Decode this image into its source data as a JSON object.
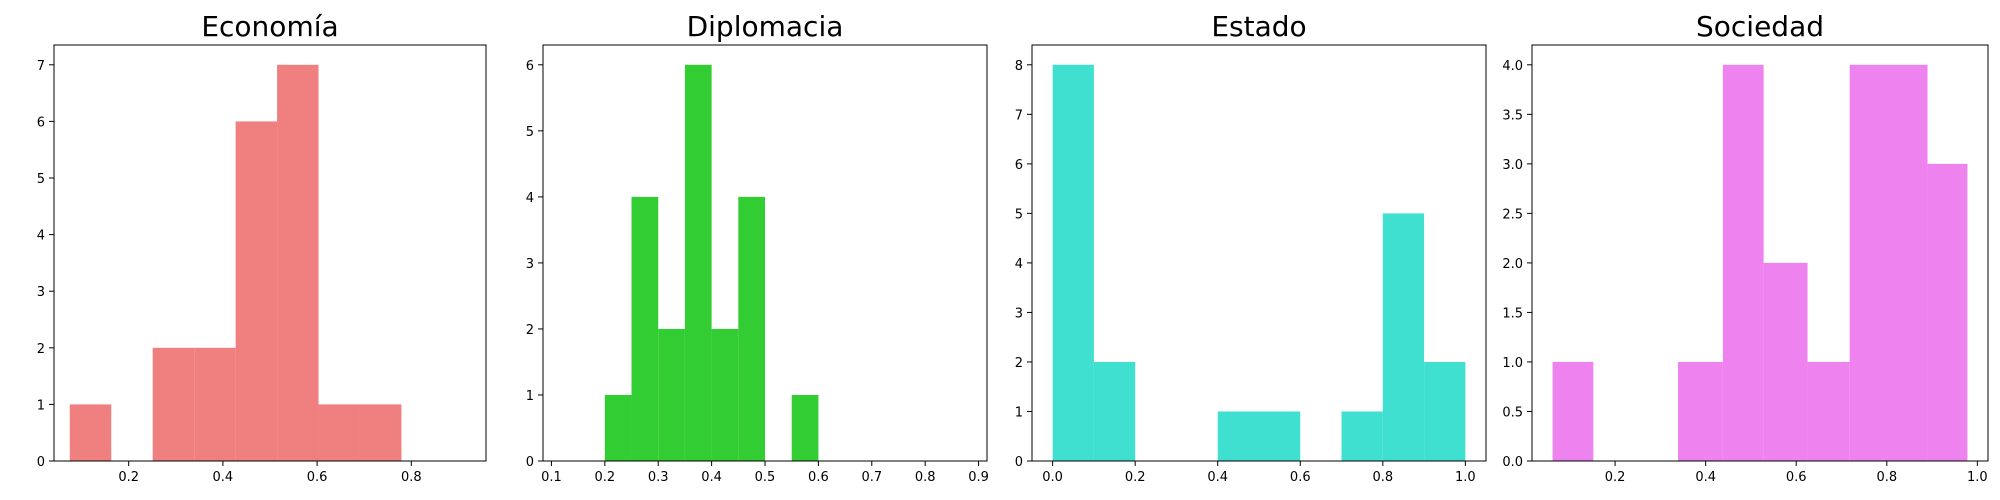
{
  "chart_data": [
    {
      "type": "bar",
      "title": "Economía",
      "color": "#F08080",
      "xlim": [
        0.0415,
        0.9585
      ],
      "ylim": [
        0,
        7.35
      ],
      "xticks": [
        0.2,
        0.4,
        0.6,
        0.8
      ],
      "xtick_labels": [
        "0.2",
        "0.4",
        "0.6",
        "0.8"
      ],
      "yticks": [
        0,
        1,
        2,
        3,
        4,
        5,
        6,
        7
      ],
      "ytick_labels": [
        "0",
        "1",
        "2",
        "3",
        "4",
        "5",
        "6",
        "7"
      ],
      "bins": [
        {
          "x0": 0.075,
          "x1": 0.163,
          "count": 1
        },
        {
          "x0": 0.251,
          "x1": 0.339,
          "count": 2
        },
        {
          "x0": 0.339,
          "x1": 0.427,
          "count": 2
        },
        {
          "x0": 0.427,
          "x1": 0.515,
          "count": 6
        },
        {
          "x0": 0.515,
          "x1": 0.603,
          "count": 7
        },
        {
          "x0": 0.603,
          "x1": 0.691,
          "count": 1
        },
        {
          "x0": 0.691,
          "x1": 0.779,
          "count": 1
        }
      ]
    },
    {
      "type": "bar",
      "title": "Diplomacia",
      "color": "#32CD32",
      "xlim": [
        0.0842,
        0.9158
      ],
      "ylim": [
        0,
        6.3
      ],
      "xticks": [
        0.1,
        0.2,
        0.3,
        0.4,
        0.5,
        0.6,
        0.7,
        0.8,
        0.9
      ],
      "xtick_labels": [
        "0.1",
        "0.2",
        "0.3",
        "0.4",
        "0.5",
        "0.6",
        "0.7",
        "0.8",
        "0.9"
      ],
      "yticks": [
        0,
        1,
        2,
        3,
        4,
        5,
        6
      ],
      "ytick_labels": [
        "0",
        "1",
        "2",
        "3",
        "4",
        "5",
        "6"
      ],
      "bins": [
        {
          "x0": 0.2,
          "x1": 0.25,
          "count": 1
        },
        {
          "x0": 0.25,
          "x1": 0.3,
          "count": 4
        },
        {
          "x0": 0.3,
          "x1": 0.35,
          "count": 2
        },
        {
          "x0": 0.35,
          "x1": 0.4,
          "count": 6
        },
        {
          "x0": 0.4,
          "x1": 0.45,
          "count": 2
        },
        {
          "x0": 0.45,
          "x1": 0.5,
          "count": 4
        },
        {
          "x0": 0.55,
          "x1": 0.6,
          "count": 1
        }
      ]
    },
    {
      "type": "bar",
      "title": "Estado",
      "color": "#40E0D0",
      "xlim": [
        -0.05,
        1.05
      ],
      "ylim": [
        0,
        8.4
      ],
      "xticks": [
        0.0,
        0.2,
        0.4,
        0.6,
        0.8,
        1.0
      ],
      "xtick_labels": [
        "0.0",
        "0.2",
        "0.4",
        "0.6",
        "0.8",
        "1.0"
      ],
      "yticks": [
        0,
        1,
        2,
        3,
        4,
        5,
        6,
        7,
        8
      ],
      "ytick_labels": [
        "0",
        "1",
        "2",
        "3",
        "4",
        "5",
        "6",
        "7",
        "8"
      ],
      "bins": [
        {
          "x0": 0.0,
          "x1": 0.1,
          "count": 8
        },
        {
          "x0": 0.1,
          "x1": 0.2,
          "count": 2
        },
        {
          "x0": 0.4,
          "x1": 0.5,
          "count": 1
        },
        {
          "x0": 0.5,
          "x1": 0.6,
          "count": 1
        },
        {
          "x0": 0.7,
          "x1": 0.8,
          "count": 1
        },
        {
          "x0": 0.8,
          "x1": 0.9,
          "count": 5
        },
        {
          "x0": 0.9,
          "x1": 1.0,
          "count": 2
        }
      ]
    },
    {
      "type": "bar",
      "title": "Sociedad",
      "color": "#EE82EE",
      "xlim": [
        0.0165,
        1.0235
      ],
      "ylim": [
        0,
        4.2
      ],
      "xticks": [
        0.2,
        0.4,
        0.6,
        0.8,
        1.0
      ],
      "xtick_labels": [
        "0.2",
        "0.4",
        "0.6",
        "0.8",
        "1.0"
      ],
      "yticks": [
        0,
        0.5,
        1,
        1.5,
        2,
        2.5,
        3,
        3.5,
        4
      ],
      "ytick_labels": [
        "0.0",
        "0.5",
        "1.0",
        "1.5",
        "2.0",
        "2.5",
        "3.0",
        "3.5",
        "4.0"
      ],
      "bins": [
        {
          "x0": 0.062,
          "x1": 0.152,
          "count": 1
        },
        {
          "x0": 0.339,
          "x1": 0.438,
          "count": 1
        },
        {
          "x0": 0.438,
          "x1": 0.528,
          "count": 4
        },
        {
          "x0": 0.528,
          "x1": 0.625,
          "count": 2
        },
        {
          "x0": 0.625,
          "x1": 0.718,
          "count": 1
        },
        {
          "x0": 0.718,
          "x1": 0.89,
          "count": 4
        },
        {
          "x0": 0.89,
          "x1": 0.978,
          "count": 3
        }
      ]
    }
  ]
}
